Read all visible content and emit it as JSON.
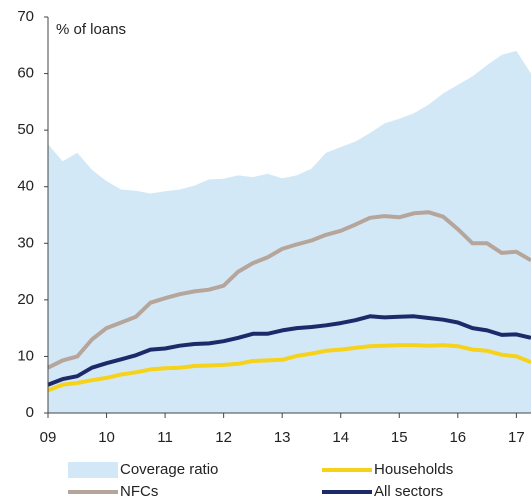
{
  "chart_data": {
    "type": "line",
    "annotation": "% of loans",
    "x": [
      2009,
      2009.25,
      2009.5,
      2009.75,
      2010,
      2010.25,
      2010.5,
      2010.75,
      2011,
      2011.25,
      2011.5,
      2011.75,
      2012,
      2012.25,
      2012.5,
      2012.75,
      2013,
      2013.25,
      2013.5,
      2013.75,
      2014,
      2014.25,
      2014.5,
      2014.75,
      2015,
      2015.25,
      2015.5,
      2015.75,
      2016,
      2016.25,
      2016.5,
      2016.75,
      2017,
      2017.25
    ],
    "series": [
      {
        "name": "Coverage ratio",
        "type": "area",
        "color": "#d3e8f6",
        "values": [
          47.5,
          44.5,
          46,
          43,
          41,
          39.5,
          39.3,
          38.8,
          39.2,
          39.5,
          40.2,
          41.3,
          41.4,
          42,
          41.7,
          42.3,
          41.5,
          42,
          43.2,
          46,
          47,
          48,
          49.5,
          51.2,
          52,
          53,
          54.5,
          56.5,
          58,
          59.5,
          61.5,
          63.3,
          64,
          60
        ]
      },
      {
        "name": "Households",
        "type": "line",
        "color": "#f6d21a",
        "values": [
          4,
          5,
          5.3,
          5.8,
          6.2,
          6.8,
          7.2,
          7.7,
          7.9,
          8,
          8.3,
          8.4,
          8.5,
          8.7,
          9.2,
          9.3,
          9.4,
          10.1,
          10.5,
          11,
          11.2,
          11.5,
          11.8,
          11.9,
          12,
          12,
          11.9,
          12,
          11.8,
          11.2,
          11,
          10.3,
          10,
          9
        ]
      },
      {
        "name": "NFCs",
        "type": "line",
        "color": "#b5a59b",
        "values": [
          8,
          9.3,
          10,
          13,
          15,
          16,
          17,
          19.5,
          20.3,
          21,
          21.5,
          21.8,
          22.5,
          25,
          26.5,
          27.5,
          29,
          29.8,
          30.5,
          31.5,
          32.2,
          33.3,
          34.5,
          34.8,
          34.6,
          35.3,
          35.5,
          34.7,
          32.5,
          30,
          30,
          28.3,
          28.5,
          27
        ]
      },
      {
        "name": "All sectors",
        "type": "line",
        "color": "#1d2a6a",
        "values": [
          5,
          6,
          6.5,
          8,
          8.8,
          9.5,
          10.2,
          11.2,
          11.4,
          11.9,
          12.2,
          12.3,
          12.7,
          13.3,
          14,
          14,
          14.6,
          15,
          15.2,
          15.5,
          15.9,
          16.4,
          17.1,
          16.9,
          17,
          17.1,
          16.8,
          16.5,
          16,
          15,
          14.6,
          13.8,
          13.9,
          13.3
        ]
      }
    ],
    "xlim": [
      2009,
      2017.25
    ],
    "xticks": [
      {
        "value": 2009,
        "label": "09"
      },
      {
        "value": 2010,
        "label": "10"
      },
      {
        "value": 2011,
        "label": "11"
      },
      {
        "value": 2012,
        "label": "12"
      },
      {
        "value": 2013,
        "label": "13"
      },
      {
        "value": 2014,
        "label": "14"
      },
      {
        "value": 2015,
        "label": "15"
      },
      {
        "value": 2016,
        "label": "16"
      },
      {
        "value": 2017,
        "label": "17"
      }
    ],
    "ylim": [
      0,
      70
    ],
    "yticks": [
      0,
      10,
      20,
      30,
      40,
      50,
      60,
      70
    ],
    "grid": false
  }
}
